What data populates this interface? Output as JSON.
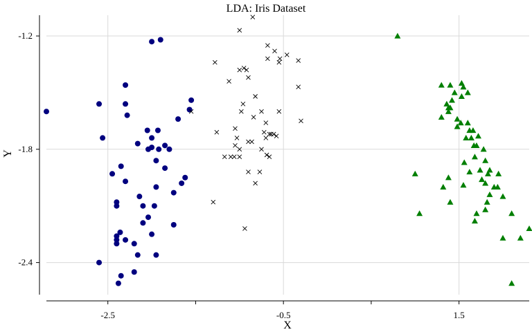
{
  "chart_data": {
    "type": "scatter",
    "title": "LDA: Iris Dataset",
    "xlabel": "X",
    "ylabel": "Y",
    "xlim": [
      -3.2,
      2.3
    ],
    "ylim": [
      -2.57,
      -1.09
    ],
    "x_ticks": [
      -2.5,
      -1.5,
      -0.5,
      0.5,
      1.5
    ],
    "x_tick_labels": [
      "-2.5",
      "",
      "-0.5",
      "",
      "1.5"
    ],
    "y_ticks": [
      -1.2,
      -1.8,
      -2.4
    ],
    "y_tick_labels": [
      "-1.2",
      "-1.8",
      "-2.4"
    ],
    "grid": true,
    "series": [
      {
        "marker": "circle",
        "color": "#00007f",
        "points": [
          [
            -2.0,
            -1.23
          ],
          [
            -1.9,
            -1.22
          ],
          [
            -2.3,
            -1.46
          ],
          [
            -2.6,
            -1.56
          ],
          [
            -2.3,
            -1.56
          ],
          [
            -3.2,
            -1.6
          ],
          [
            -2.28,
            -1.62
          ],
          [
            -1.55,
            -1.54
          ],
          [
            -1.57,
            -1.59
          ],
          [
            -1.7,
            -1.64
          ],
          [
            -2.05,
            -1.7
          ],
          [
            -1.93,
            -1.7
          ],
          [
            -2.0,
            -1.74
          ],
          [
            -2.56,
            -1.74
          ],
          [
            -2.16,
            -1.77
          ],
          [
            -2.0,
            -1.79
          ],
          [
            -1.92,
            -1.8
          ],
          [
            -2.04,
            -1.8
          ],
          [
            -1.8,
            -1.8
          ],
          [
            -1.85,
            -1.78
          ],
          [
            -1.95,
            -1.86
          ],
          [
            -2.35,
            -1.89
          ],
          [
            -1.85,
            -1.9
          ],
          [
            -2.45,
            -1.93
          ],
          [
            -2.3,
            -1.97
          ],
          [
            -1.62,
            -1.95
          ],
          [
            -1.66,
            -1.98
          ],
          [
            -1.95,
            -2.0
          ],
          [
            -1.75,
            -2.03
          ],
          [
            -2.14,
            -2.05
          ],
          [
            -2.1,
            -2.1
          ],
          [
            -1.97,
            -2.1
          ],
          [
            -2.4,
            -2.08
          ],
          [
            -2.4,
            -2.1
          ],
          [
            -2.04,
            -2.16
          ],
          [
            -1.75,
            -2.2
          ],
          [
            -2.1,
            -2.19
          ],
          [
            -2.36,
            -2.24
          ],
          [
            -2.3,
            -2.28
          ],
          [
            -2.4,
            -2.28
          ],
          [
            -2.2,
            -2.3
          ],
          [
            -2.0,
            -2.25
          ],
          [
            -2.6,
            -2.4
          ],
          [
            -2.16,
            -2.36
          ],
          [
            -2.4,
            -2.26
          ],
          [
            -2.4,
            -2.3
          ],
          [
            -1.95,
            -2.36
          ],
          [
            -2.2,
            -2.45
          ],
          [
            -2.35,
            -2.47
          ],
          [
            -2.38,
            -2.51
          ]
        ]
      },
      {
        "marker": "x",
        "color": "#000000",
        "points": [
          [
            -0.85,
            -1.1
          ],
          [
            -1.0,
            -1.17
          ],
          [
            -0.68,
            -1.25
          ],
          [
            -0.6,
            -1.28
          ],
          [
            -0.46,
            -1.3
          ],
          [
            -0.54,
            -1.32
          ],
          [
            -0.68,
            -1.32
          ],
          [
            -0.55,
            -1.34
          ],
          [
            -0.33,
            -1.33
          ],
          [
            -1.28,
            -1.34
          ],
          [
            -0.95,
            -1.37
          ],
          [
            -1.0,
            -1.38
          ],
          [
            -0.92,
            -1.38
          ],
          [
            -0.9,
            -1.42
          ],
          [
            -1.12,
            -1.44
          ],
          [
            -0.33,
            -1.47
          ],
          [
            -0.82,
            -1.52
          ],
          [
            -0.96,
            -1.56
          ],
          [
            -0.98,
            -1.6
          ],
          [
            -1.55,
            -1.6
          ],
          [
            -0.55,
            -1.6
          ],
          [
            -0.75,
            -1.6
          ],
          [
            -0.84,
            -1.63
          ],
          [
            -0.3,
            -1.65
          ],
          [
            -0.7,
            -1.66
          ],
          [
            -1.05,
            -1.69
          ],
          [
            -0.72,
            -1.71
          ],
          [
            -1.26,
            -1.71
          ],
          [
            -0.61,
            -1.72
          ],
          [
            -0.64,
            -1.72
          ],
          [
            -0.66,
            -1.72
          ],
          [
            -0.58,
            -1.73
          ],
          [
            -0.7,
            -1.74
          ],
          [
            -1.03,
            -1.74
          ],
          [
            -0.9,
            -1.76
          ],
          [
            -0.86,
            -1.76
          ],
          [
            -1.05,
            -1.78
          ],
          [
            -1.0,
            -1.8
          ],
          [
            -0.75,
            -1.8
          ],
          [
            -1.1,
            -1.84
          ],
          [
            -0.69,
            -1.83
          ],
          [
            -1.0,
            -1.84
          ],
          [
            -1.17,
            -1.84
          ],
          [
            -1.06,
            -1.84
          ],
          [
            -0.66,
            -1.84
          ],
          [
            -0.9,
            -1.92
          ],
          [
            -0.77,
            -1.92
          ],
          [
            -0.82,
            -1.98
          ],
          [
            -1.3,
            -2.08
          ],
          [
            -0.94,
            -2.22
          ]
        ]
      },
      {
        "marker": "triangle",
        "color": "#007f00",
        "points": [
          [
            0.8,
            -1.2
          ],
          [
            1.3,
            -1.46
          ],
          [
            1.4,
            -1.46
          ],
          [
            1.55,
            -1.47
          ],
          [
            1.53,
            -1.45
          ],
          [
            1.45,
            -1.5
          ],
          [
            1.42,
            -1.54
          ],
          [
            1.53,
            -1.52
          ],
          [
            1.36,
            -1.56
          ],
          [
            1.6,
            -1.5
          ],
          [
            1.38,
            -1.58
          ],
          [
            1.4,
            -1.58
          ],
          [
            1.3,
            -1.63
          ],
          [
            1.38,
            -1.6
          ],
          [
            1.48,
            -1.64
          ],
          [
            1.52,
            -1.66
          ],
          [
            1.6,
            -1.66
          ],
          [
            1.48,
            -1.68
          ],
          [
            1.62,
            -1.7
          ],
          [
            1.66,
            -1.7
          ],
          [
            1.58,
            -1.74
          ],
          [
            1.72,
            -1.73
          ],
          [
            1.64,
            -1.74
          ],
          [
            1.67,
            -1.78
          ],
          [
            1.7,
            -1.78
          ],
          [
            1.68,
            -1.84
          ],
          [
            1.78,
            -1.8
          ],
          [
            1.56,
            -1.87
          ],
          [
            1.8,
            -1.86
          ],
          [
            1.74,
            -1.91
          ],
          [
            1.85,
            -1.91
          ],
          [
            1.0,
            -1.93
          ],
          [
            1.62,
            -1.92
          ],
          [
            1.83,
            -1.93
          ],
          [
            1.95,
            -1.93
          ],
          [
            1.76,
            -1.96
          ],
          [
            1.38,
            -1.95
          ],
          [
            1.8,
            -1.98
          ],
          [
            1.55,
            -1.99
          ],
          [
            1.9,
            -2.0
          ],
          [
            1.94,
            -2.0
          ],
          [
            1.32,
            -2.0
          ],
          [
            1.85,
            -2.04
          ],
          [
            2.0,
            -2.05
          ],
          [
            1.4,
            -2.08
          ],
          [
            1.82,
            -2.08
          ],
          [
            1.8,
            -2.12
          ],
          [
            1.05,
            -2.14
          ],
          [
            1.7,
            -2.14
          ],
          [
            2.1,
            -2.14
          ],
          [
            1.68,
            -2.18
          ],
          [
            2.3,
            -2.22
          ],
          [
            2.0,
            -2.27
          ],
          [
            2.2,
            -2.27
          ],
          [
            2.1,
            -2.51
          ]
        ]
      }
    ]
  }
}
